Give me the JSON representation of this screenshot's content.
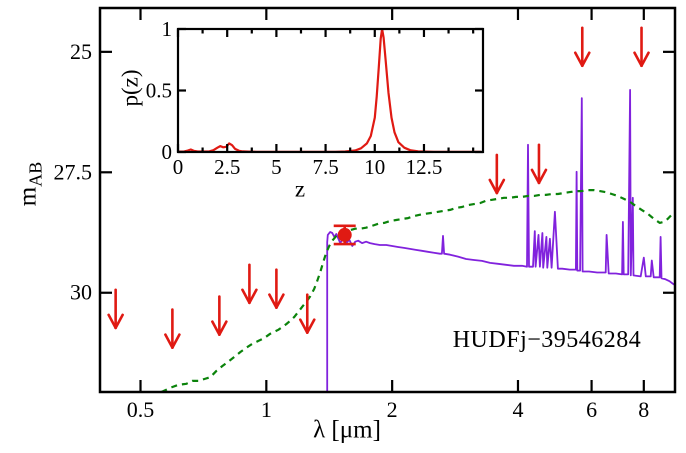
{
  "labels": {
    "object_id": "HUDFj−39546284",
    "xlabel": "λ [μm]",
    "ylabel_main": "m",
    "ylabel_sub": "AB",
    "inset_xlabel": "z",
    "inset_ylabel": "p(z)"
  },
  "colors": {
    "red": "#e01a13",
    "purple": "#8122dd",
    "green": "#0b830b",
    "axis": "#000000",
    "background": "#ffffff"
  },
  "chart_data": {
    "type": "line",
    "title": "HUDFj−39546284",
    "main_plot": {
      "xlabel": "λ [μm]",
      "ylabel": "m_AB",
      "xscale": "log",
      "xlim": [
        0.4,
        9.5
      ],
      "ylim_bottom": 32.06,
      "ylim_top": 24.09,
      "y_inverted": true,
      "grid": false,
      "xticks": {
        "values": [
          0.5,
          1,
          2,
          4,
          6,
          8
        ],
        "labels": [
          "0.5",
          "1",
          "2",
          "4",
          "6",
          "8"
        ]
      },
      "yticks": {
        "values": [
          25,
          27.5,
          30
        ],
        "labels": [
          "25",
          "27.5",
          "30"
        ]
      },
      "series": [
        {
          "name": "high_z_model_spectrum_z10.3",
          "color_key": "purple",
          "style": "solid",
          "points": [
            [
              1.398,
              32.5
            ],
            [
              1.398,
              28.95
            ],
            [
              1.403,
              28.8
            ],
            [
              1.421,
              28.74
            ],
            [
              1.438,
              28.76
            ],
            [
              1.454,
              28.84
            ],
            [
              1.47,
              28.78
            ],
            [
              1.487,
              28.88
            ],
            [
              1.503,
              28.97
            ],
            [
              1.528,
              28.86
            ],
            [
              1.553,
              28.97
            ],
            [
              1.579,
              28.9
            ],
            [
              1.606,
              29.03
            ],
            [
              1.632,
              28.94
            ],
            [
              1.659,
              28.92
            ],
            [
              1.695,
              28.97
            ],
            [
              1.733,
              28.94
            ],
            [
              1.77,
              28.97
            ],
            [
              1.817,
              28.99
            ],
            [
              1.869,
              29.01
            ],
            [
              1.936,
              29.01
            ],
            [
              2.0,
              29.03
            ],
            [
              2.066,
              29.05
            ],
            [
              2.135,
              29.07
            ],
            [
              2.206,
              29.09
            ],
            [
              2.28,
              29.11
            ],
            [
              2.356,
              29.13
            ],
            [
              2.435,
              29.15
            ],
            [
              2.516,
              29.17
            ],
            [
              2.6,
              29.19
            ],
            [
              2.63,
              29.19
            ],
            [
              2.646,
              28.82
            ],
            [
              2.662,
              29.19
            ],
            [
              2.752,
              29.21
            ],
            [
              2.875,
              29.25
            ],
            [
              3.005,
              29.3
            ],
            [
              3.14,
              29.32
            ],
            [
              3.281,
              29.34
            ],
            [
              3.43,
              29.38
            ],
            [
              3.583,
              29.4
            ],
            [
              3.744,
              29.42
            ],
            [
              3.912,
              29.44
            ],
            [
              4.089,
              29.44
            ],
            [
              4.203,
              29.46
            ],
            [
              4.226,
              26.93
            ],
            [
              4.25,
              29.46
            ],
            [
              4.345,
              29.46
            ],
            [
              4.388,
              28.72
            ],
            [
              4.408,
              29.46
            ],
            [
              4.479,
              28.8
            ],
            [
              4.514,
              29.46
            ],
            [
              4.576,
              28.76
            ],
            [
              4.597,
              29.48
            ],
            [
              4.677,
              28.84
            ],
            [
              4.7,
              29.48
            ],
            [
              4.768,
              28.88
            ],
            [
              4.813,
              29.48
            ],
            [
              4.902,
              28.32
            ],
            [
              4.985,
              29.5
            ],
            [
              5.103,
              29.5
            ],
            [
              5.323,
              29.52
            ],
            [
              5.502,
              29.52
            ],
            [
              5.524,
              27.49
            ],
            [
              5.547,
              29.54
            ],
            [
              5.631,
              29.54
            ],
            [
              5.686,
              25.96
            ],
            [
              5.71,
              29.56
            ],
            [
              5.914,
              29.56
            ],
            [
              6.19,
              29.58
            ],
            [
              6.487,
              29.58
            ],
            [
              6.517,
              28.8
            ],
            [
              6.592,
              29.6
            ],
            [
              6.86,
              29.6
            ],
            [
              7.099,
              29.62
            ],
            [
              7.131,
              28.53
            ],
            [
              7.163,
              29.62
            ],
            [
              7.341,
              29.62
            ],
            [
              7.419,
              25.79
            ],
            [
              7.448,
              29.64
            ],
            [
              7.53,
              28.03
            ],
            [
              7.56,
              29.64
            ],
            [
              7.866,
              29.66
            ],
            [
              7.999,
              29.27
            ],
            [
              8.09,
              29.66
            ],
            [
              8.312,
              29.66
            ],
            [
              8.358,
              29.33
            ],
            [
              8.45,
              29.68
            ],
            [
              8.732,
              29.68
            ],
            [
              8.775,
              28.84
            ],
            [
              8.818,
              29.7
            ],
            [
              9.015,
              29.72
            ],
            [
              9.218,
              29.76
            ],
            [
              9.378,
              29.81
            ],
            [
              9.537,
              29.85
            ]
          ]
        },
        {
          "name": "low_z_model_spectrum",
          "color_key": "green",
          "style": "dashed",
          "points": [
            [
              0.561,
              32.06
            ],
            [
              0.59,
              31.97
            ],
            [
              0.616,
              31.91
            ],
            [
              0.644,
              31.89
            ],
            [
              0.665,
              31.83
            ],
            [
              0.688,
              31.83
            ],
            [
              0.711,
              31.79
            ],
            [
              0.735,
              31.75
            ],
            [
              0.76,
              31.62
            ],
            [
              0.785,
              31.52
            ],
            [
              0.811,
              31.43
            ],
            [
              0.839,
              31.33
            ],
            [
              0.867,
              31.23
            ],
            [
              0.896,
              31.14
            ],
            [
              0.926,
              31.06
            ],
            [
              0.957,
              31.0
            ],
            [
              0.989,
              30.94
            ],
            [
              1.022,
              30.85
            ],
            [
              1.045,
              30.81
            ],
            [
              1.068,
              30.77
            ],
            [
              1.092,
              30.71
            ],
            [
              1.116,
              30.65
            ],
            [
              1.141,
              30.58
            ],
            [
              1.167,
              30.5
            ],
            [
              1.192,
              30.4
            ],
            [
              1.219,
              30.29
            ],
            [
              1.246,
              30.19
            ],
            [
              1.274,
              30.07
            ],
            [
              1.302,
              29.92
            ],
            [
              1.324,
              29.75
            ],
            [
              1.346,
              29.57
            ],
            [
              1.369,
              29.36
            ],
            [
              1.391,
              29.17
            ],
            [
              1.414,
              29.03
            ],
            [
              1.438,
              28.92
            ],
            [
              1.47,
              28.82
            ],
            [
              1.503,
              28.76
            ],
            [
              1.544,
              28.72
            ],
            [
              1.588,
              28.7
            ],
            [
              1.632,
              28.67
            ],
            [
              1.677,
              28.67
            ],
            [
              1.733,
              28.65
            ],
            [
              1.792,
              28.61
            ],
            [
              1.851,
              28.57
            ],
            [
              1.914,
              28.55
            ],
            [
              1.978,
              28.51
            ],
            [
              2.045,
              28.49
            ],
            [
              2.113,
              28.47
            ],
            [
              2.184,
              28.45
            ],
            [
              2.257,
              28.41
            ],
            [
              2.333,
              28.38
            ],
            [
              2.411,
              28.36
            ],
            [
              2.493,
              28.34
            ],
            [
              2.576,
              28.32
            ],
            [
              2.662,
              28.3
            ],
            [
              2.752,
              28.28
            ],
            [
              2.843,
              28.24
            ],
            [
              2.939,
              28.22
            ],
            [
              3.038,
              28.18
            ],
            [
              3.14,
              28.16
            ],
            [
              3.245,
              28.14
            ],
            [
              3.354,
              28.09
            ],
            [
              3.466,
              28.07
            ],
            [
              3.583,
              28.05
            ],
            [
              3.703,
              28.03
            ],
            [
              3.827,
              28.03
            ],
            [
              3.956,
              28.01
            ],
            [
              4.089,
              28.01
            ],
            [
              4.226,
              27.99
            ],
            [
              4.368,
              27.99
            ],
            [
              4.514,
              27.97
            ],
            [
              4.666,
              27.97
            ],
            [
              4.823,
              27.95
            ],
            [
              4.985,
              27.95
            ],
            [
              5.151,
              27.93
            ],
            [
              5.323,
              27.91
            ],
            [
              5.502,
              27.89
            ],
            [
              5.686,
              27.89
            ],
            [
              5.876,
              27.87
            ],
            [
              6.073,
              27.87
            ],
            [
              6.278,
              27.89
            ],
            [
              6.487,
              27.91
            ],
            [
              6.705,
              27.95
            ],
            [
              6.93,
              27.99
            ],
            [
              7.163,
              28.05
            ],
            [
              7.404,
              28.11
            ],
            [
              7.651,
              28.2
            ],
            [
              7.908,
              28.28
            ],
            [
              8.175,
              28.36
            ],
            [
              8.358,
              28.43
            ],
            [
              8.541,
              28.49
            ],
            [
              8.732,
              28.55
            ],
            [
              8.928,
              28.53
            ],
            [
              9.122,
              28.47
            ],
            [
              9.329,
              28.38
            ],
            [
              9.537,
              28.32
            ]
          ]
        }
      ],
      "upper_limits": {
        "color_key": "red",
        "marker": "down-arrow",
        "points": [
          [
            0.436,
            29.94
          ],
          [
            0.596,
            30.35
          ],
          [
            0.772,
            30.08
          ],
          [
            0.911,
            29.42
          ],
          [
            1.057,
            29.52
          ],
          [
            1.253,
            30.04
          ],
          [
            3.56,
            27.14
          ],
          [
            4.49,
            26.93
          ],
          [
            5.7,
            24.5
          ],
          [
            7.9,
            24.5
          ]
        ]
      },
      "detection": {
        "color_key": "red",
        "lambda": 1.54,
        "mag": 28.8,
        "mag_err": 0.19
      }
    },
    "inset_plot": {
      "xlabel": "z",
      "ylabel": "p(z)",
      "xlim": [
        0,
        15.5
      ],
      "ylim": [
        0,
        1
      ],
      "xticks": {
        "values": [
          0,
          2.5,
          5,
          7.5,
          10,
          12.5
        ],
        "labels": [
          "0",
          "2.5",
          "5",
          "7.5",
          "10",
          "12.5"
        ]
      },
      "xminor": [
        1.25,
        3.75,
        6.25,
        8.75,
        11.25,
        13.75,
        15
      ],
      "yticks": {
        "values": [
          0,
          0.5,
          1
        ],
        "labels": [
          "0",
          "0.5",
          "1"
        ]
      },
      "curve": {
        "color_key": "red",
        "points": [
          [
            0,
            0.003
          ],
          [
            0.3,
            0.003
          ],
          [
            0.5,
            0.012
          ],
          [
            0.65,
            0.02
          ],
          [
            0.8,
            0.01
          ],
          [
            1.0,
            0.004
          ],
          [
            1.3,
            0.004
          ],
          [
            1.6,
            0.006
          ],
          [
            1.8,
            0.015
          ],
          [
            2.0,
            0.035
          ],
          [
            2.15,
            0.048
          ],
          [
            2.3,
            0.038
          ],
          [
            2.45,
            0.042
          ],
          [
            2.6,
            0.07
          ],
          [
            2.75,
            0.055
          ],
          [
            2.9,
            0.025
          ],
          [
            3.1,
            0.01
          ],
          [
            3.3,
            0.005
          ],
          [
            3.6,
            0.003
          ],
          [
            4,
            0.002
          ],
          [
            5,
            0.002
          ],
          [
            6,
            0.002
          ],
          [
            7,
            0.002
          ],
          [
            8,
            0.002
          ],
          [
            8.5,
            0.004
          ],
          [
            9,
            0.012
          ],
          [
            9.3,
            0.03
          ],
          [
            9.6,
            0.07
          ],
          [
            9.8,
            0.13
          ],
          [
            10,
            0.28
          ],
          [
            10.1,
            0.45
          ],
          [
            10.2,
            0.68
          ],
          [
            10.3,
            0.92
          ],
          [
            10.37,
            1.0
          ],
          [
            10.45,
            0.93
          ],
          [
            10.55,
            0.75
          ],
          [
            10.7,
            0.48
          ],
          [
            10.85,
            0.28
          ],
          [
            11,
            0.16
          ],
          [
            11.2,
            0.08
          ],
          [
            11.5,
            0.035
          ],
          [
            11.8,
            0.015
          ],
          [
            12.2,
            0.006
          ],
          [
            12.6,
            0.003
          ],
          [
            13,
            0.002
          ],
          [
            15.4,
            0.002
          ]
        ]
      }
    }
  }
}
